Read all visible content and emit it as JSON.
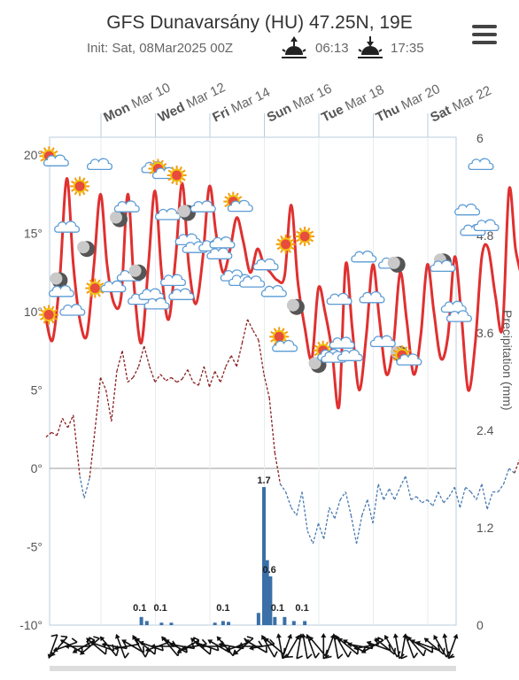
{
  "header": {
    "title": "GFS Dunavarsány (HU) 47.25N, 19E",
    "init": "Init: Sat, 08Mar2025 00Z",
    "sunrise": "06:13",
    "sunset": "17:35",
    "sunrise_icon": "sunrise-icon",
    "sunset_icon": "sunset-icon",
    "menu_icon": "hamburger-menu-icon"
  },
  "chart_data": {
    "type": "line",
    "left_axis": {
      "unit": "°",
      "ticks": [
        "20°",
        "15°",
        "10°",
        "5°",
        "0°",
        "-5°",
        "-10°"
      ],
      "ylim": [
        -10,
        20
      ]
    },
    "right_axis": {
      "label": "Precipitation (mm)",
      "ticks": [
        "6",
        "4.8",
        "3.6",
        "2.4",
        "1.2",
        "0"
      ],
      "ylim": [
        0,
        6
      ]
    },
    "days": [
      {
        "wd": "Mon",
        "date": "Mar 10"
      },
      {
        "wd": "Wed",
        "date": "Mar 12"
      },
      {
        "wd": "Fri",
        "date": "Mar 14"
      },
      {
        "wd": "Sun",
        "date": "Mar 16"
      },
      {
        "wd": "Tue",
        "date": "Mar 18"
      },
      {
        "wd": "Thu",
        "date": "Mar 20"
      },
      {
        "wd": "Sat",
        "date": "Mar 22"
      }
    ],
    "temperature": {
      "color": "#e03030",
      "days_range": [
        0,
        16
      ],
      "points": [
        [
          0.0,
          9.5
        ],
        [
          0.12,
          8.2
        ],
        [
          0.25,
          12
        ],
        [
          0.38,
          18.5
        ],
        [
          0.5,
          13
        ],
        [
          0.62,
          9.5
        ],
        [
          0.75,
          8.5
        ],
        [
          0.88,
          13
        ],
        [
          1.0,
          17.5
        ],
        [
          1.12,
          13
        ],
        [
          1.25,
          10.5
        ],
        [
          1.38,
          11
        ],
        [
          1.5,
          17.5
        ],
        [
          1.62,
          11.5
        ],
        [
          1.75,
          8
        ],
        [
          1.88,
          13
        ],
        [
          2.0,
          17.7
        ],
        [
          2.12,
          12.5
        ],
        [
          2.25,
          9.5
        ],
        [
          2.38,
          13.5
        ],
        [
          2.5,
          18.2
        ],
        [
          2.62,
          13
        ],
        [
          2.75,
          10.5
        ],
        [
          2.88,
          13.5
        ],
        [
          3.0,
          18
        ],
        [
          3.12,
          15
        ],
        [
          3.25,
          12.5
        ],
        [
          3.38,
          14
        ],
        [
          3.5,
          16
        ],
        [
          3.62,
          14.5
        ],
        [
          3.75,
          12.5
        ],
        [
          3.88,
          14
        ],
        [
          4.0,
          13
        ],
        [
          4.12,
          12.5
        ],
        [
          4.25,
          12
        ],
        [
          4.38,
          12.3
        ],
        [
          4.5,
          16.8
        ],
        [
          4.62,
          12
        ],
        [
          4.75,
          9
        ],
        [
          4.88,
          7
        ],
        [
          5.0,
          11.5
        ],
        [
          5.12,
          10
        ],
        [
          5.25,
          7.5
        ],
        [
          5.38,
          4
        ],
        [
          5.5,
          13
        ],
        [
          5.62,
          9
        ],
        [
          5.75,
          5
        ],
        [
          5.88,
          8.5
        ],
        [
          6.0,
          13
        ],
        [
          6.12,
          9.5
        ],
        [
          6.25,
          6
        ],
        [
          6.38,
          8
        ],
        [
          6.5,
          12.5
        ],
        [
          6.62,
          9.5
        ],
        [
          6.75,
          6
        ],
        [
          6.88,
          8.5
        ],
        [
          7.0,
          13
        ],
        [
          7.12,
          10
        ],
        [
          7.25,
          7
        ],
        [
          7.38,
          8.5
        ],
        [
          7.5,
          13.5
        ],
        [
          7.62,
          10
        ],
        [
          7.75,
          5
        ],
        [
          7.88,
          8
        ],
        [
          8.0,
          13.5
        ],
        [
          8.12,
          14
        ],
        [
          8.25,
          11
        ],
        [
          8.38,
          9
        ],
        [
          8.5,
          17.8
        ],
        [
          8.62,
          14
        ],
        [
          8.75,
          12
        ]
      ]
    },
    "dewpoint": {
      "color_above": "#8a2020",
      "color_below": "#4a7ab0",
      "points": [
        [
          0.0,
          2.0
        ],
        [
          0.1,
          2.3
        ],
        [
          0.2,
          2.1
        ],
        [
          0.3,
          3.2
        ],
        [
          0.4,
          2.6
        ],
        [
          0.5,
          3.4
        ],
        [
          0.62,
          -0.5
        ],
        [
          0.7,
          -1.9
        ],
        [
          0.8,
          -0.6
        ],
        [
          0.9,
          2.5
        ],
        [
          1.0,
          5.8
        ],
        [
          1.1,
          5.0
        ],
        [
          1.2,
          3.0
        ],
        [
          1.3,
          6.2
        ],
        [
          1.4,
          7.5
        ],
        [
          1.5,
          5.5
        ],
        [
          1.6,
          5.8
        ],
        [
          1.7,
          6.5
        ],
        [
          1.8,
          7.8
        ],
        [
          1.9,
          6.5
        ],
        [
          2.0,
          5.5
        ],
        [
          2.1,
          6.0
        ],
        [
          2.2,
          5.6
        ],
        [
          2.3,
          5.8
        ],
        [
          2.4,
          5.5
        ],
        [
          2.5,
          5.7
        ],
        [
          2.6,
          6.3
        ],
        [
          2.7,
          5.5
        ],
        [
          2.8,
          5.3
        ],
        [
          2.9,
          6.5
        ],
        [
          3.0,
          5.2
        ],
        [
          3.1,
          6.2
        ],
        [
          3.2,
          5.5
        ],
        [
          3.3,
          6.5
        ],
        [
          3.4,
          7.2
        ],
        [
          3.5,
          6.5
        ],
        [
          3.6,
          8.0
        ],
        [
          3.7,
          9.5
        ],
        [
          3.8,
          8.8
        ],
        [
          3.9,
          8.2
        ],
        [
          4.0,
          6.0
        ],
        [
          4.1,
          4.5
        ],
        [
          4.2,
          1.0
        ],
        [
          4.3,
          -1.0
        ],
        [
          4.4,
          -1.5
        ],
        [
          4.5,
          -2.5
        ],
        [
          4.6,
          -3.0
        ],
        [
          4.7,
          -1.5
        ],
        [
          4.8,
          -4.0
        ],
        [
          4.9,
          -4.8
        ],
        [
          5.0,
          -3.5
        ],
        [
          5.1,
          -4.5
        ],
        [
          5.2,
          -2.5
        ],
        [
          5.3,
          -3.2
        ],
        [
          5.4,
          -2.0
        ],
        [
          5.5,
          -1.5
        ],
        [
          5.6,
          -3.0
        ],
        [
          5.7,
          -4.8
        ],
        [
          5.8,
          -3.0
        ],
        [
          5.9,
          -2.0
        ],
        [
          6.0,
          -3.5
        ],
        [
          6.1,
          -1.0
        ],
        [
          6.2,
          -2.0
        ],
        [
          6.3,
          -1.3
        ],
        [
          6.4,
          -2.0
        ],
        [
          6.5,
          -1.2
        ],
        [
          6.6,
          -0.5
        ],
        [
          6.7,
          -2.0
        ],
        [
          6.8,
          -1.8
        ],
        [
          6.9,
          -2.2
        ],
        [
          7.0,
          -2.0
        ],
        [
          7.1,
          -2.4
        ],
        [
          7.2,
          -1.5
        ],
        [
          7.3,
          -2.2
        ],
        [
          7.4,
          -1.8
        ],
        [
          7.5,
          -1.2
        ],
        [
          7.6,
          -2.5
        ],
        [
          7.7,
          -1.2
        ],
        [
          7.8,
          -1.5
        ],
        [
          7.9,
          -2.0
        ],
        [
          8.0,
          -1.0
        ],
        [
          8.1,
          -2.6
        ],
        [
          8.2,
          -1.5
        ],
        [
          8.3,
          -1.5
        ],
        [
          8.4,
          -1.0
        ],
        [
          8.5,
          0.0
        ],
        [
          8.6,
          -0.3
        ],
        [
          8.75,
          1.1
        ]
      ]
    },
    "precipitation": {
      "color": "#3a6fa8",
      "bars": [
        [
          1.75,
          0.1
        ],
        [
          1.85,
          0.05
        ],
        [
          2.12,
          0.03
        ],
        [
          2.3,
          0.03
        ],
        [
          3.1,
          0.03
        ],
        [
          3.25,
          0.05
        ],
        [
          3.35,
          0.04
        ],
        [
          3.9,
          0.15
        ],
        [
          4.0,
          1.7
        ],
        [
          4.06,
          0.8
        ],
        [
          4.12,
          0.6
        ],
        [
          4.2,
          0.1
        ],
        [
          4.38,
          0.1
        ],
        [
          4.55,
          0.05
        ],
        [
          4.75,
          0.05
        ]
      ],
      "labels": [
        {
          "x": 1.72,
          "text": "0.1"
        },
        {
          "x": 2.1,
          "text": "0.1"
        },
        {
          "x": 3.25,
          "text": "0.1"
        },
        {
          "x": 4.0,
          "text": "1.7"
        },
        {
          "x": 4.1,
          "text": "0.6"
        },
        {
          "x": 4.25,
          "text": "0.1"
        },
        {
          "x": 4.7,
          "text": "0.1"
        }
      ]
    },
    "weather_icons": [
      {
        "x": 0.05,
        "y": 9.8,
        "icon": "sun-icon"
      },
      {
        "x": 0.12,
        "y": 19.7,
        "icon": "sun-cloud-icon"
      },
      {
        "x": 0.25,
        "y": 12.0,
        "icon": "moon-icon"
      },
      {
        "x": 0.3,
        "y": 11.2,
        "icon": "cloud-icon"
      },
      {
        "x": 0.4,
        "y": 15.3,
        "icon": "cloud-icon"
      },
      {
        "x": 0.5,
        "y": 10.0,
        "icon": "cloud-icon"
      },
      {
        "x": 0.62,
        "y": 18.0,
        "icon": "sun-icon"
      },
      {
        "x": 0.9,
        "y": 11.5,
        "icon": "sun-icon"
      },
      {
        "x": 0.75,
        "y": 14.0,
        "icon": "moon-icon"
      },
      {
        "x": 1.0,
        "y": 19.3,
        "icon": "cloud-icon"
      },
      {
        "x": 1.25,
        "y": 11.5,
        "icon": "cloud-icon"
      },
      {
        "x": 1.35,
        "y": 15.9,
        "icon": "moon-icon"
      },
      {
        "x": 1.5,
        "y": 16.6,
        "icon": "cloud-icon"
      },
      {
        "x": 1.55,
        "y": 12.2,
        "icon": "cloud-icon"
      },
      {
        "x": 1.7,
        "y": 12.5,
        "icon": "moon-icon"
      },
      {
        "x": 1.75,
        "y": 10.7,
        "icon": "cloud-icon"
      },
      {
        "x": 1.95,
        "y": 11.0,
        "icon": "cloud-icon"
      },
      {
        "x": 2.05,
        "y": 10.4,
        "icon": "cloud-icon"
      },
      {
        "x": 2.0,
        "y": 19.1,
        "icon": "cloud-icon"
      },
      {
        "x": 2.12,
        "y": 18.9,
        "icon": "sun-cloud-icon"
      },
      {
        "x": 2.4,
        "y": 18.7,
        "icon": "sun-icon"
      },
      {
        "x": 2.25,
        "y": 16.1,
        "icon": "cloud-icon"
      },
      {
        "x": 2.35,
        "y": 11.9,
        "icon": "cloud-icon"
      },
      {
        "x": 2.5,
        "y": 11.0,
        "icon": "cloud-icon"
      },
      {
        "x": 2.6,
        "y": 16.3,
        "icon": "moon-icon"
      },
      {
        "x": 2.62,
        "y": 14.5,
        "icon": "cloud-icon"
      },
      {
        "x": 2.75,
        "y": 14.0,
        "icon": "cloud-icon"
      },
      {
        "x": 2.9,
        "y": 16.6,
        "icon": "cloud-icon"
      },
      {
        "x": 3.05,
        "y": 14.1,
        "icon": "cloud-icon"
      },
      {
        "x": 3.2,
        "y": 13.6,
        "icon": "cloud-icon"
      },
      {
        "x": 3.25,
        "y": 14.3,
        "icon": "cloud-icon"
      },
      {
        "x": 3.5,
        "y": 16.8,
        "icon": "sun-cloud-icon"
      },
      {
        "x": 3.45,
        "y": 12.2,
        "icon": "cloud-icon"
      },
      {
        "x": 3.6,
        "y": 11.9,
        "icon": "cloud-icon"
      },
      {
        "x": 3.8,
        "y": 11.8,
        "icon": "cloud-icon"
      },
      {
        "x": 4.05,
        "y": 12.9,
        "icon": "cloud-icon"
      },
      {
        "x": 4.2,
        "y": 11.2,
        "icon": "cloud-icon"
      },
      {
        "x": 4.4,
        "y": 14.3,
        "icon": "sun-icon"
      },
      {
        "x": 4.75,
        "y": 14.8,
        "icon": "sun-icon"
      },
      {
        "x": 4.28,
        "y": 8.4,
        "icon": "sun-icon"
      },
      {
        "x": 4.4,
        "y": 7.7,
        "icon": "cloud-icon"
      },
      {
        "x": 4.6,
        "y": 10.3,
        "icon": "moon-icon"
      },
      {
        "x": 5.0,
        "y": 6.6,
        "icon": "moon-icon"
      },
      {
        "x": 5.15,
        "y": 7.3,
        "icon": "sun-cloud-icon"
      },
      {
        "x": 5.3,
        "y": 7.0,
        "icon": "cloud-icon"
      },
      {
        "x": 5.4,
        "y": 10.7,
        "icon": "cloud-icon"
      },
      {
        "x": 5.45,
        "y": 7.9,
        "icon": "cloud-icon"
      },
      {
        "x": 5.6,
        "y": 7.1,
        "icon": "cloud-icon"
      },
      {
        "x": 5.85,
        "y": 13.4,
        "icon": "cloud-icon"
      },
      {
        "x": 6.0,
        "y": 10.8,
        "icon": "cloud-icon"
      },
      {
        "x": 6.2,
        "y": 8.0,
        "icon": "cloud-icon"
      },
      {
        "x": 6.35,
        "y": 13.0,
        "icon": "cloud-icon"
      },
      {
        "x": 6.45,
        "y": 13.0,
        "icon": "moon-icon"
      },
      {
        "x": 6.5,
        "y": 7.3,
        "icon": "moon-icon"
      },
      {
        "x": 6.6,
        "y": 7.0,
        "icon": "sun-cloud-icon"
      },
      {
        "x": 7.3,
        "y": 13.2,
        "icon": "moon-icon"
      },
      {
        "x": 7.3,
        "y": 12.8,
        "icon": "cloud-icon"
      },
      {
        "x": 7.5,
        "y": 10.2,
        "icon": "cloud-icon"
      },
      {
        "x": 7.6,
        "y": 9.6,
        "icon": "cloud-icon"
      },
      {
        "x": 7.75,
        "y": 16.4,
        "icon": "cloud-icon"
      },
      {
        "x": 7.85,
        "y": 15.1,
        "icon": "cloud-icon"
      },
      {
        "x": 8.0,
        "y": 19.3,
        "icon": "cloud-icon"
      },
      {
        "x": 8.1,
        "y": 15.4,
        "icon": "cloud-icon"
      }
    ],
    "wind_barbs": [
      200,
      220,
      250,
      300,
      270,
      240,
      230,
      310,
      290,
      320,
      280,
      340,
      260,
      300,
      330,
      310,
      290,
      250,
      270,
      320,
      300,
      280,
      240,
      260,
      310,
      290,
      270,
      300,
      320,
      280,
      250,
      230,
      270,
      300,
      260,
      330,
      310,
      350,
      20,
      30,
      10,
      350,
      340,
      320,
      0,
      20,
      350,
      330,
      310,
      300,
      280,
      260,
      240,
      290,
      310,
      330,
      350,
      10,
      340,
      320,
      300,
      290,
      310,
      330,
      350,
      20
    ]
  }
}
